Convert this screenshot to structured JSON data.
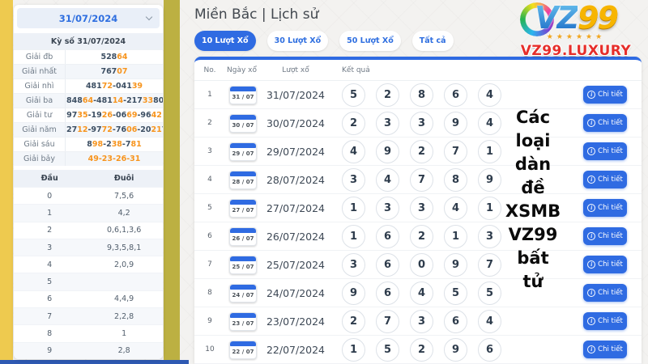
{
  "sidebar": {
    "date_selector": "31/07/2024",
    "draw_header": "Kỳ số 31/07/2024",
    "prizes": [
      {
        "label": "Giải đb",
        "lines": [
          [
            "52864"
          ]
        ]
      },
      {
        "label": "Giải nhất",
        "lines": [
          [
            "76707"
          ]
        ]
      },
      {
        "label": "Giải nhì",
        "lines": [
          [
            "48172",
            "04139"
          ]
        ]
      },
      {
        "label": "Giải ba",
        "lines": [
          [
            "84864",
            "48114",
            "21733"
          ],
          [
            "80920",
            "24905",
            "80492"
          ]
        ]
      },
      {
        "label": "Giải tư",
        "lines": [
          [
            "9735",
            "1926",
            "0669",
            "9642"
          ]
        ]
      },
      {
        "label": "Giải năm",
        "lines": [
          [
            "2712",
            "9772",
            "7606",
            "2021"
          ],
          [
            "7140",
            "7278"
          ]
        ]
      },
      {
        "label": "Giải sáu",
        "lines": [
          [
            "898",
            "238",
            "781"
          ]
        ]
      },
      {
        "label": "Giải bảy",
        "lines": [
          [
            "49",
            "23",
            "26",
            "31"
          ]
        ]
      }
    ],
    "dau_duoi": {
      "header_dau": "Đầu",
      "header_duoi": "Đuôi",
      "rows": [
        {
          "dau": "0",
          "duoi": "7,5,6"
        },
        {
          "dau": "1",
          "duoi": "4,2"
        },
        {
          "dau": "2",
          "duoi": "0,6,1,3,6"
        },
        {
          "dau": "3",
          "duoi": "9,3,5,8,1"
        },
        {
          "dau": "4",
          "duoi": "2,0,9"
        },
        {
          "dau": "5",
          "duoi": ""
        },
        {
          "dau": "6",
          "duoi": "4,4,9"
        },
        {
          "dau": "7",
          "duoi": "2,2,8"
        },
        {
          "dau": "8",
          "duoi": "1"
        },
        {
          "dau": "9",
          "duoi": "2,8"
        }
      ]
    }
  },
  "main": {
    "title": "Miền Bắc | Lịch sử",
    "tabs": [
      {
        "label": "10 Lượt Xổ",
        "active": true
      },
      {
        "label": "30 Lượt Xổ",
        "active": false
      },
      {
        "label": "50 Lượt Xổ",
        "active": false
      },
      {
        "label": "Tất cả",
        "active": false
      }
    ],
    "table": {
      "headers": {
        "no": "No.",
        "date_icon": "Ngày xổ",
        "draw": "Lượt xổ",
        "result": "Kết quả"
      },
      "detail_label": "Chi tiết",
      "rows": [
        {
          "no": "1",
          "icon_date": "31 / 07",
          "date": "31/07/2024",
          "digits": [
            "5",
            "2",
            "8",
            "6",
            "4"
          ]
        },
        {
          "no": "2",
          "icon_date": "30 / 07",
          "date": "30/07/2024",
          "digits": [
            "2",
            "3",
            "3",
            "9",
            "4"
          ]
        },
        {
          "no": "3",
          "icon_date": "29 / 07",
          "date": "29/07/2024",
          "digits": [
            "4",
            "9",
            "2",
            "7",
            "1"
          ]
        },
        {
          "no": "4",
          "icon_date": "28 / 07",
          "date": "28/07/2024",
          "digits": [
            "3",
            "4",
            "7",
            "8",
            "9"
          ]
        },
        {
          "no": "5",
          "icon_date": "27 / 07",
          "date": "27/07/2024",
          "digits": [
            "1",
            "3",
            "3",
            "4",
            "1"
          ]
        },
        {
          "no": "6",
          "icon_date": "26 / 07",
          "date": "26/07/2024",
          "digits": [
            "1",
            "6",
            "2",
            "1",
            "3"
          ]
        },
        {
          "no": "7",
          "icon_date": "25 / 07",
          "date": "25/07/2024",
          "digits": [
            "3",
            "6",
            "0",
            "9",
            "7"
          ]
        },
        {
          "no": "8",
          "icon_date": "24 / 07",
          "date": "24/07/2024",
          "digits": [
            "9",
            "6",
            "4",
            "5",
            "5"
          ]
        },
        {
          "no": "9",
          "icon_date": "23 / 07",
          "date": "23/07/2024",
          "digits": [
            "2",
            "7",
            "3",
            "6",
            "4"
          ]
        },
        {
          "no": "10",
          "icon_date": "22 / 07",
          "date": "22/07/2024",
          "digits": [
            "1",
            "5",
            "2",
            "9",
            "6"
          ]
        }
      ]
    },
    "overlay_lines": [
      "Các",
      "loại",
      "dàn",
      "đề",
      "XSMB",
      "VZ99",
      "bất",
      "tử"
    ]
  },
  "brand": {
    "vz": "VZ",
    "nines": "99",
    "stars": "★★★★★★",
    "domain": "VZ99.LUXURY"
  },
  "colors": {
    "accent_blue": "#2f6be2",
    "number_orange": "#f7941d",
    "number_dark": "#3d4f63",
    "yellow_strip": "#eeca4f",
    "olive_strip": "#bcb042",
    "brand_red": "#e62e2a",
    "brand_gold": "#f7b500"
  }
}
